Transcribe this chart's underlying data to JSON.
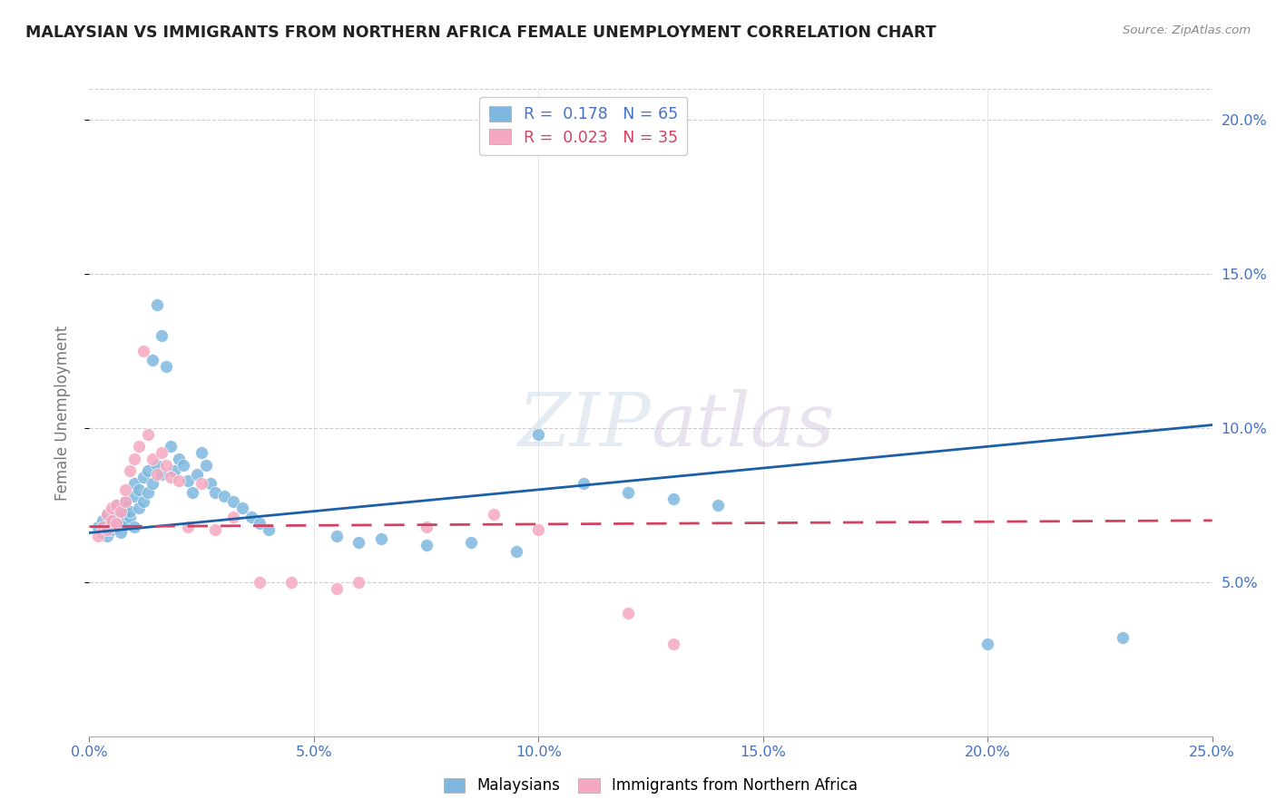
{
  "title": "MALAYSIAN VS IMMIGRANTS FROM NORTHERN AFRICA FEMALE UNEMPLOYMENT CORRELATION CHART",
  "source": "Source: ZipAtlas.com",
  "ylabel": "Female Unemployment",
  "legend_label1": "Malaysians",
  "legend_label2": "Immigrants from Northern Africa",
  "r1": "0.178",
  "n1": "65",
  "r2": "0.023",
  "n2": "35",
  "xlim": [
    0.0,
    0.25
  ],
  "ylim": [
    0.0,
    0.21
  ],
  "xticks": [
    0.0,
    0.05,
    0.1,
    0.15,
    0.2,
    0.25
  ],
  "yticks": [
    0.05,
    0.1,
    0.15,
    0.2
  ],
  "color_blue": "#7eb8e0",
  "color_pink": "#f5a8c0",
  "line_color_blue": "#1a5fa8",
  "line_color_pink": "#d44060",
  "mal_trend_x0": 0.0,
  "mal_trend_y0": 0.066,
  "mal_trend_x1": 0.25,
  "mal_trend_y1": 0.101,
  "imm_trend_x0": 0.0,
  "imm_trend_y0": 0.068,
  "imm_trend_x1": 0.25,
  "imm_trend_y1": 0.07,
  "malaysians_x": [
    0.002,
    0.003,
    0.003,
    0.004,
    0.004,
    0.005,
    0.005,
    0.005,
    0.006,
    0.006,
    0.006,
    0.007,
    0.007,
    0.007,
    0.008,
    0.008,
    0.008,
    0.009,
    0.009,
    0.01,
    0.01,
    0.01,
    0.011,
    0.011,
    0.012,
    0.012,
    0.013,
    0.013,
    0.014,
    0.014,
    0.015,
    0.015,
    0.016,
    0.016,
    0.017,
    0.018,
    0.019,
    0.02,
    0.021,
    0.022,
    0.023,
    0.024,
    0.025,
    0.026,
    0.027,
    0.028,
    0.03,
    0.032,
    0.034,
    0.036,
    0.038,
    0.04,
    0.055,
    0.06,
    0.065,
    0.075,
    0.085,
    0.095,
    0.1,
    0.11,
    0.12,
    0.13,
    0.14,
    0.2,
    0.23
  ],
  "malaysians_y": [
    0.068,
    0.066,
    0.07,
    0.065,
    0.072,
    0.067,
    0.069,
    0.073,
    0.068,
    0.071,
    0.075,
    0.066,
    0.07,
    0.074,
    0.069,
    0.072,
    0.076,
    0.071,
    0.073,
    0.068,
    0.078,
    0.082,
    0.074,
    0.08,
    0.076,
    0.084,
    0.079,
    0.086,
    0.082,
    0.122,
    0.088,
    0.14,
    0.085,
    0.13,
    0.12,
    0.094,
    0.086,
    0.09,
    0.088,
    0.083,
    0.079,
    0.085,
    0.092,
    0.088,
    0.082,
    0.079,
    0.078,
    0.076,
    0.074,
    0.071,
    0.069,
    0.067,
    0.065,
    0.063,
    0.064,
    0.062,
    0.063,
    0.06,
    0.098,
    0.082,
    0.079,
    0.077,
    0.075,
    0.03,
    0.032
  ],
  "immigrants_x": [
    0.002,
    0.003,
    0.004,
    0.004,
    0.005,
    0.005,
    0.006,
    0.006,
    0.007,
    0.008,
    0.008,
    0.009,
    0.01,
    0.011,
    0.012,
    0.013,
    0.014,
    0.015,
    0.016,
    0.017,
    0.018,
    0.02,
    0.022,
    0.025,
    0.028,
    0.032,
    0.038,
    0.045,
    0.055,
    0.06,
    0.075,
    0.09,
    0.1,
    0.12,
    0.13
  ],
  "immigrants_y": [
    0.065,
    0.068,
    0.067,
    0.072,
    0.07,
    0.074,
    0.069,
    0.075,
    0.073,
    0.076,
    0.08,
    0.086,
    0.09,
    0.094,
    0.125,
    0.098,
    0.09,
    0.085,
    0.092,
    0.088,
    0.084,
    0.083,
    0.068,
    0.082,
    0.067,
    0.071,
    0.05,
    0.05,
    0.048,
    0.05,
    0.068,
    0.072,
    0.067,
    0.04,
    0.03
  ]
}
